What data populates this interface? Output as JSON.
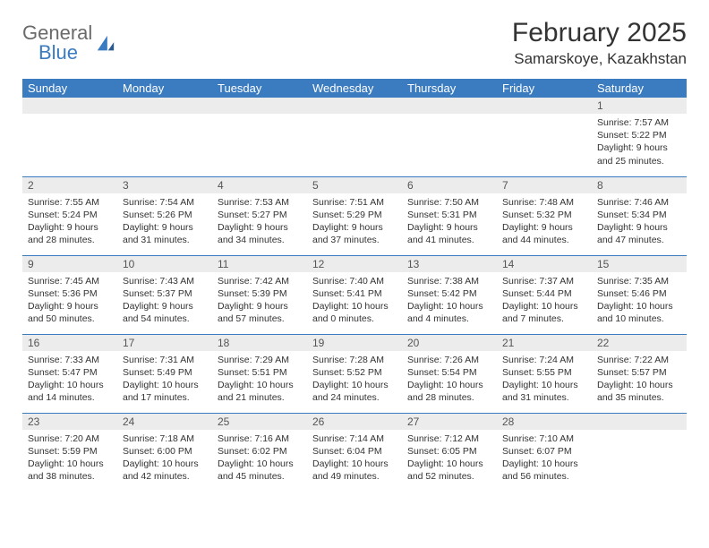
{
  "logo": {
    "word1": "General",
    "word2": "Blue"
  },
  "title": "February 2025",
  "location": "Samarskoye, Kazakhstan",
  "colors": {
    "headerBar": "#3b7bbf",
    "headerText": "#ffffff",
    "dayNumBg": "#ececec",
    "rowBorder": "#3b7bbf",
    "bodyText": "#333333",
    "logoGray": "#6a6a6a",
    "logoBlue": "#3b7bbf"
  },
  "daysOfWeek": [
    "Sunday",
    "Monday",
    "Tuesday",
    "Wednesday",
    "Thursday",
    "Friday",
    "Saturday"
  ],
  "startWeekday": 6,
  "daysInMonth": 28,
  "cells": {
    "1": {
      "sunrise": "7:57 AM",
      "sunset": "5:22 PM",
      "daylight": "9 hours and 25 minutes."
    },
    "2": {
      "sunrise": "7:55 AM",
      "sunset": "5:24 PM",
      "daylight": "9 hours and 28 minutes."
    },
    "3": {
      "sunrise": "7:54 AM",
      "sunset": "5:26 PM",
      "daylight": "9 hours and 31 minutes."
    },
    "4": {
      "sunrise": "7:53 AM",
      "sunset": "5:27 PM",
      "daylight": "9 hours and 34 minutes."
    },
    "5": {
      "sunrise": "7:51 AM",
      "sunset": "5:29 PM",
      "daylight": "9 hours and 37 minutes."
    },
    "6": {
      "sunrise": "7:50 AM",
      "sunset": "5:31 PM",
      "daylight": "9 hours and 41 minutes."
    },
    "7": {
      "sunrise": "7:48 AM",
      "sunset": "5:32 PM",
      "daylight": "9 hours and 44 minutes."
    },
    "8": {
      "sunrise": "7:46 AM",
      "sunset": "5:34 PM",
      "daylight": "9 hours and 47 minutes."
    },
    "9": {
      "sunrise": "7:45 AM",
      "sunset": "5:36 PM",
      "daylight": "9 hours and 50 minutes."
    },
    "10": {
      "sunrise": "7:43 AM",
      "sunset": "5:37 PM",
      "daylight": "9 hours and 54 minutes."
    },
    "11": {
      "sunrise": "7:42 AM",
      "sunset": "5:39 PM",
      "daylight": "9 hours and 57 minutes."
    },
    "12": {
      "sunrise": "7:40 AM",
      "sunset": "5:41 PM",
      "daylight": "10 hours and 0 minutes."
    },
    "13": {
      "sunrise": "7:38 AM",
      "sunset": "5:42 PM",
      "daylight": "10 hours and 4 minutes."
    },
    "14": {
      "sunrise": "7:37 AM",
      "sunset": "5:44 PM",
      "daylight": "10 hours and 7 minutes."
    },
    "15": {
      "sunrise": "7:35 AM",
      "sunset": "5:46 PM",
      "daylight": "10 hours and 10 minutes."
    },
    "16": {
      "sunrise": "7:33 AM",
      "sunset": "5:47 PM",
      "daylight": "10 hours and 14 minutes."
    },
    "17": {
      "sunrise": "7:31 AM",
      "sunset": "5:49 PM",
      "daylight": "10 hours and 17 minutes."
    },
    "18": {
      "sunrise": "7:29 AM",
      "sunset": "5:51 PM",
      "daylight": "10 hours and 21 minutes."
    },
    "19": {
      "sunrise": "7:28 AM",
      "sunset": "5:52 PM",
      "daylight": "10 hours and 24 minutes."
    },
    "20": {
      "sunrise": "7:26 AM",
      "sunset": "5:54 PM",
      "daylight": "10 hours and 28 minutes."
    },
    "21": {
      "sunrise": "7:24 AM",
      "sunset": "5:55 PM",
      "daylight": "10 hours and 31 minutes."
    },
    "22": {
      "sunrise": "7:22 AM",
      "sunset": "5:57 PM",
      "daylight": "10 hours and 35 minutes."
    },
    "23": {
      "sunrise": "7:20 AM",
      "sunset": "5:59 PM",
      "daylight": "10 hours and 38 minutes."
    },
    "24": {
      "sunrise": "7:18 AM",
      "sunset": "6:00 PM",
      "daylight": "10 hours and 42 minutes."
    },
    "25": {
      "sunrise": "7:16 AM",
      "sunset": "6:02 PM",
      "daylight": "10 hours and 45 minutes."
    },
    "26": {
      "sunrise": "7:14 AM",
      "sunset": "6:04 PM",
      "daylight": "10 hours and 49 minutes."
    },
    "27": {
      "sunrise": "7:12 AM",
      "sunset": "6:05 PM",
      "daylight": "10 hours and 52 minutes."
    },
    "28": {
      "sunrise": "7:10 AM",
      "sunset": "6:07 PM",
      "daylight": "10 hours and 56 minutes."
    }
  },
  "labels": {
    "sunrise": "Sunrise:",
    "sunset": "Sunset:",
    "daylight": "Daylight:"
  }
}
